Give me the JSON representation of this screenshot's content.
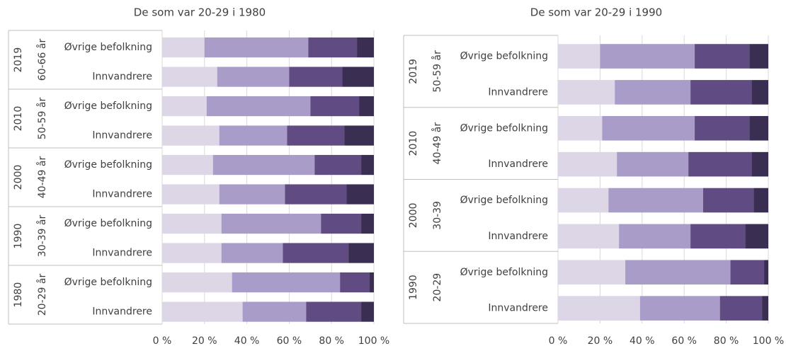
{
  "chart_data": [
    {
      "type": "stacked_barh",
      "title": "De som var 20-29 i 1980",
      "groups": [
        {
          "year": "2019",
          "age": "60-66 år"
        },
        {
          "year": "2010",
          "age": "50-59 år"
        },
        {
          "year": "2000",
          "age": "40-49 år"
        },
        {
          "year": "1990",
          "age": "30-39 år"
        },
        {
          "year": "1980",
          "age": "20-29 år"
        }
      ],
      "categories": [
        "Øvrige befolkning",
        "Innvandrere",
        "Øvrige befolkning",
        "Innvandrere",
        "Øvrige befolkning",
        "Innvandrere",
        "Øvrige befolkning",
        "Innvandrere",
        "Øvrige befolkning",
        "Innvandrere"
      ],
      "series": [
        {
          "color": "#dcd6e7",
          "values": [
            20,
            26,
            21,
            27,
            24,
            27,
            28,
            28,
            33,
            38
          ]
        },
        {
          "color": "#a99cc8",
          "values": [
            49,
            34,
            49,
            32,
            48,
            31,
            47,
            29,
            51,
            30
          ]
        },
        {
          "color": "#604c82",
          "values": [
            23,
            25,
            23,
            27,
            22,
            29,
            19,
            31,
            14,
            26
          ]
        },
        {
          "color": "#3a2e52",
          "values": [
            8,
            15,
            7,
            14,
            6,
            13,
            6,
            12,
            2,
            6
          ]
        }
      ],
      "xlim": [
        0,
        100
      ],
      "xticks": [
        {
          "value": 0,
          "label": "0 %"
        },
        {
          "value": 20,
          "label": "20 %"
        },
        {
          "value": 40,
          "label": "40 %"
        },
        {
          "value": 60,
          "label": "60 %"
        },
        {
          "value": 80,
          "label": "80 %"
        },
        {
          "value": 100,
          "label": "100 %"
        }
      ],
      "grid": true
    },
    {
      "type": "stacked_barh",
      "title": "De som var 20-29 i 1990",
      "groups": [
        {
          "year": "2019",
          "age": "50-59 år"
        },
        {
          "year": "2010",
          "age": "40-49 år"
        },
        {
          "year": "2000",
          "age": "30-39"
        },
        {
          "year": "1990",
          "age": "20-29"
        }
      ],
      "categories": [
        "Øvrige befolkning",
        "Innvandrere",
        "Øvrige befolkning",
        "Innvandrere",
        "Øvrige befolkning",
        "Innvandrere",
        "Øvrige befolkning",
        "Innvandrere"
      ],
      "series": [
        {
          "color": "#dcd6e7",
          "values": [
            20,
            27,
            21,
            28,
            24,
            29,
            32,
            39
          ]
        },
        {
          "color": "#a99cc8",
          "values": [
            45,
            36,
            44,
            34,
            45,
            34,
            50,
            38
          ]
        },
        {
          "color": "#604c82",
          "values": [
            26,
            29,
            26,
            30,
            24,
            26,
            16,
            20
          ]
        },
        {
          "color": "#3a2e52",
          "values": [
            9,
            8,
            9,
            8,
            7,
            11,
            2,
            3
          ]
        }
      ],
      "xlim": [
        0,
        100
      ],
      "xticks": [
        {
          "value": 0,
          "label": "0 %"
        },
        {
          "value": 20,
          "label": "20 %"
        },
        {
          "value": 40,
          "label": "40 %"
        },
        {
          "value": 60,
          "label": "60 %"
        },
        {
          "value": 80,
          "label": "80 %"
        },
        {
          "value": 100,
          "label": "100 %"
        }
      ],
      "grid": true
    }
  ]
}
